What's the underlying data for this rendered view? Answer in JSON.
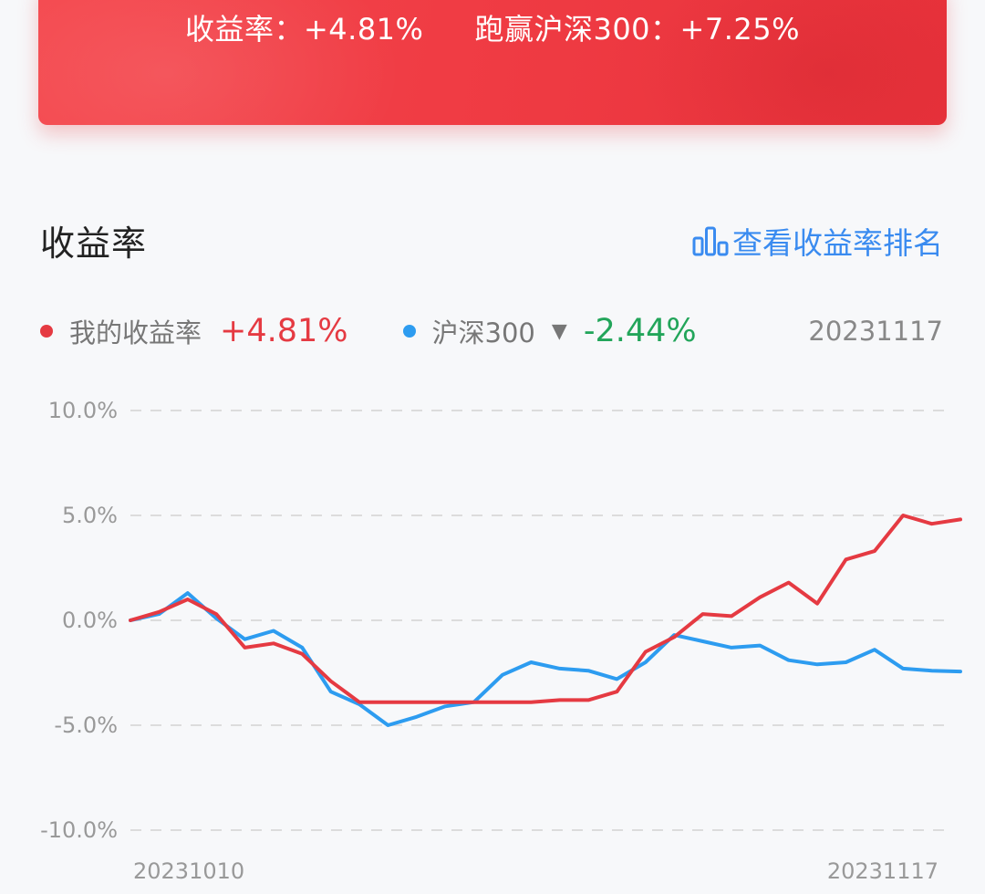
{
  "banner": {
    "return_label": "收益率：+4.81%",
    "beat_label": "跑赢沪深300：+7.25%"
  },
  "section": {
    "title": "收益率",
    "rank_link": "查看收益率排名",
    "rank_icon": "bar-chart-icon"
  },
  "legend": {
    "mine_label": "我的收益率",
    "mine_value": "+4.81%",
    "index_label": "沪深300",
    "index_value": "-2.44%",
    "date": "20231117"
  },
  "colors": {
    "mine": "#e53a42",
    "index": "#2d9cf0",
    "positive": "#e53a42",
    "negative": "#22a55a",
    "link": "#3a8bf0"
  },
  "chart_data": {
    "type": "line",
    "ylim": [
      -10,
      10
    ],
    "yticks": [
      10,
      5,
      0,
      -5,
      -10
    ],
    "ytick_labels": [
      "10.0%",
      "5.0%",
      "0.0%",
      "-5.0%",
      "-10.0%"
    ],
    "x_start_label": "20231010",
    "x_end_label": "20231117",
    "grid": true,
    "series": [
      {
        "name": "我的收益率",
        "values": [
          0.0,
          0.4,
          1.0,
          0.3,
          -1.3,
          -1.1,
          -1.6,
          -2.9,
          -3.9,
          -3.9,
          -3.9,
          -3.9,
          -3.9,
          -3.9,
          -3.9,
          -3.8,
          -3.8,
          -3.4,
          -1.5,
          -0.8,
          0.3,
          0.2,
          1.1,
          1.8,
          0.8,
          2.9,
          3.3,
          5.0,
          4.6,
          4.81
        ]
      },
      {
        "name": "沪深300",
        "values": [
          0.0,
          0.3,
          1.3,
          0.1,
          -0.9,
          -0.5,
          -1.3,
          -3.4,
          -4.0,
          -5.0,
          -4.6,
          -4.1,
          -3.9,
          -2.6,
          -2.0,
          -2.3,
          -2.4,
          -2.8,
          -2.0,
          -0.7,
          -1.0,
          -1.3,
          -1.2,
          -1.9,
          -2.1,
          -2.0,
          -1.4,
          -2.3,
          -2.4,
          -2.44
        ]
      }
    ]
  }
}
